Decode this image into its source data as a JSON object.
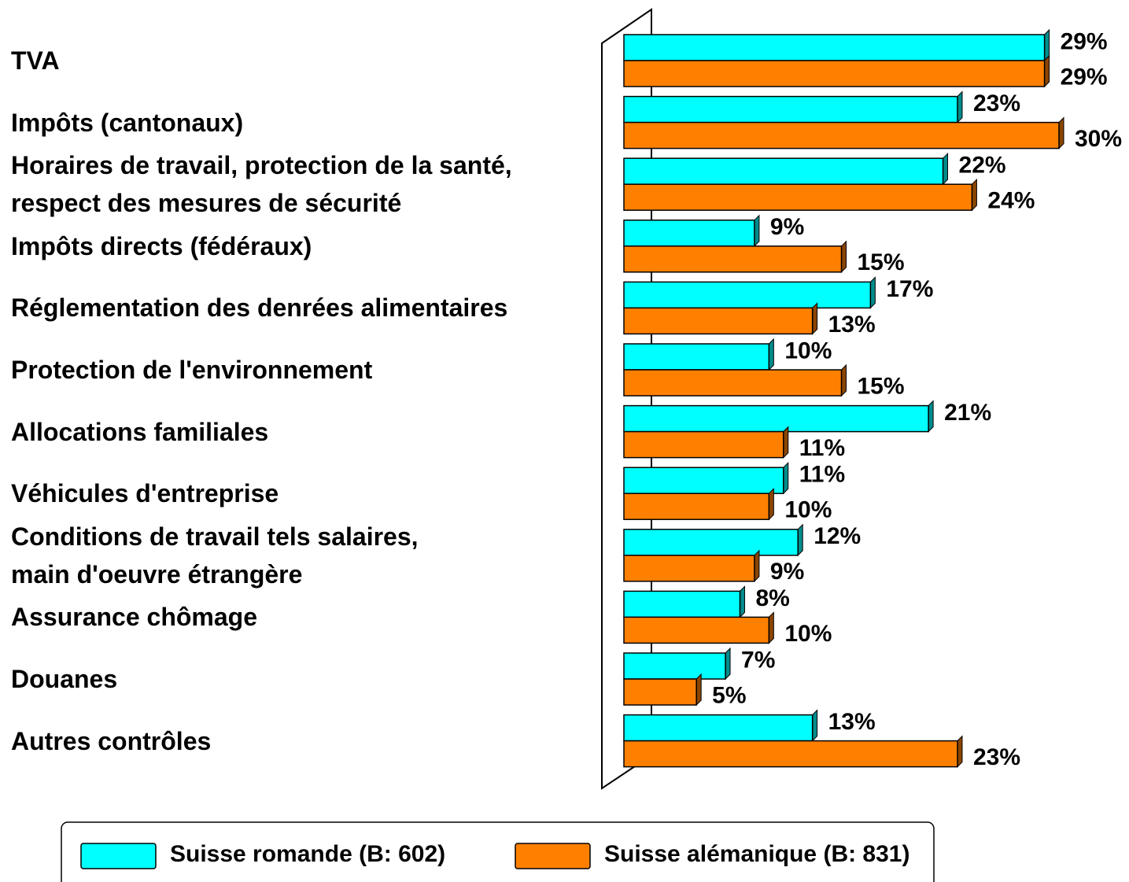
{
  "chart_data": {
    "type": "bar",
    "orientation": "horizontal",
    "categories": [
      "TVA",
      "Impôts (cantonaux)",
      "Horaires de travail, protection de la santé,\nrespect des mesures de sécurité",
      "Impôts directs (fédéraux)",
      "Réglementation des denrées alimentaires",
      "Protection de l'environnement",
      "Allocations familiales",
      "Véhicules d'entreprise",
      "Conditions de travail tels salaires,\nmain d'oeuvre étrangère",
      "Assurance chômage",
      "Douanes",
      "Autres contrôles"
    ],
    "series": [
      {
        "name": "Suisse romande (B: 602)",
        "color": "#00ffff",
        "values": [
          29,
          23,
          22,
          9,
          17,
          10,
          21,
          11,
          12,
          8,
          7,
          13
        ],
        "value_labels": [
          "29%",
          "23%",
          "22%",
          "9%",
          "17%",
          "10%",
          "21%",
          "11%",
          "12%",
          "8%",
          "7%",
          "13%"
        ]
      },
      {
        "name": "Suisse alémanique (B: 831)",
        "color": "#ff8000",
        "values": [
          29,
          30,
          24,
          15,
          13,
          15,
          11,
          10,
          9,
          10,
          5,
          23
        ],
        "value_labels": [
          "29%",
          "30%",
          "24%",
          "15%",
          "13%",
          "15%",
          "11%",
          "10%",
          "9%",
          "10%",
          "5%",
          "23%"
        ]
      }
    ],
    "xlim": [
      0,
      30
    ],
    "legend": "bottom"
  }
}
